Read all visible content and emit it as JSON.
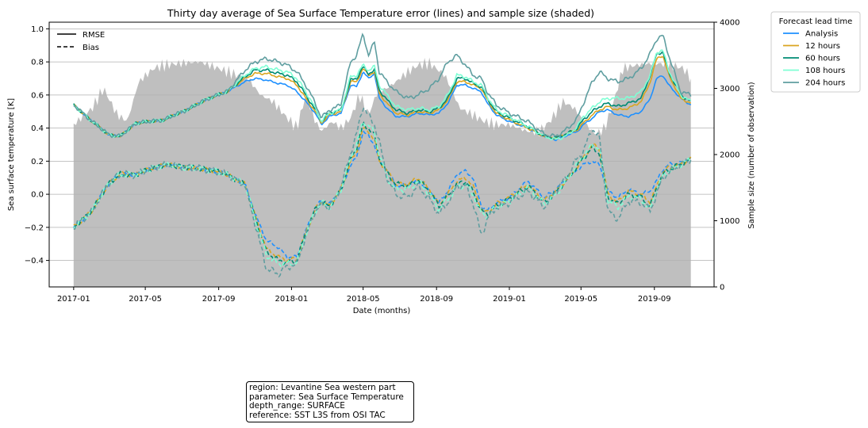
{
  "chart_data": {
    "type": "line",
    "title": "Thirty day average of Sea Surface Temperature error (lines) and sample size (shaded)",
    "xlabel": "Date (months)",
    "ylabel": "Sea surface temperature [K]",
    "y2label": "Sample size (number of observation)",
    "xlim": [
      "2016-11-21",
      "2019-12-10"
    ],
    "ylim": [
      -0.56,
      1.04
    ],
    "y2lim": [
      0,
      4000
    ],
    "x_ticks": [
      "2017-01",
      "2017-05",
      "2017-09",
      "2018-01",
      "2018-05",
      "2018-09",
      "2019-01",
      "2019-05",
      "2019-09"
    ],
    "y_ticks": [
      "−0.4",
      "−0.2",
      "0.0",
      "0.2",
      "0.4",
      "0.6",
      "0.8",
      "1.0"
    ],
    "y2_ticks": [
      "0",
      "1000",
      "2000",
      "3000",
      "4000"
    ],
    "grid": "y-major",
    "style_legend": {
      "placement": "top-left",
      "entries": [
        {
          "label": "RMSE",
          "style": "solid"
        },
        {
          "label": "Bias",
          "style": "dashed"
        }
      ]
    },
    "legend": {
      "title": "Forecast lead time",
      "placement": "outside-top-right",
      "entries": [
        "Analysis",
        "12 hours",
        "60 hours",
        "108 hours",
        "204 hours"
      ]
    },
    "colors": {
      "Analysis": "#1e90ff",
      "12 hours": "#daa520",
      "60 hours": "#008b74",
      "108 hours": "#7fffd4",
      "204 hours": "#5f9ea0",
      "sample_fill": "#bfbfbf"
    },
    "series_anchors": {
      "dates": [
        "2017-01-01",
        "2017-02-01",
        "2017-03-01",
        "2017-03-20",
        "2017-04-15",
        "2017-06-01",
        "2017-07-15",
        "2017-08-15",
        "2017-09-15",
        "2017-10-15",
        "2017-11-01",
        "2017-11-20",
        "2017-12-10",
        "2017-12-25",
        "2018-01-10",
        "2018-01-25",
        "2018-02-10",
        "2018-02-20",
        "2018-03-05",
        "2018-03-15",
        "2018-03-25",
        "2018-04-10",
        "2018-04-20",
        "2018-05-01",
        "2018-05-10",
        "2018-05-20",
        "2018-05-28",
        "2018-06-10",
        "2018-06-25",
        "2018-07-15",
        "2018-08-01",
        "2018-08-20",
        "2018-09-05",
        "2018-09-20",
        "2018-10-05",
        "2018-10-20",
        "2018-11-01",
        "2018-11-15",
        "2018-11-25",
        "2018-12-10",
        "2019-01-01",
        "2019-02-01",
        "2019-03-01",
        "2019-03-20",
        "2019-04-10",
        "2019-04-25",
        "2019-05-05",
        "2019-05-20",
        "2019-06-01",
        "2019-06-15",
        "2019-07-01",
        "2019-07-20",
        "2019-08-10",
        "2019-08-25",
        "2019-09-05",
        "2019-09-15",
        "2019-09-25",
        "2019-10-15",
        "2019-11-01"
      ],
      "rmse": {
        "Analysis": [
          0.54,
          0.44,
          0.36,
          0.35,
          0.43,
          0.45,
          0.52,
          0.58,
          0.62,
          0.68,
          0.7,
          0.69,
          0.67,
          0.66,
          0.62,
          0.56,
          0.49,
          0.42,
          0.47,
          0.48,
          0.49,
          0.66,
          0.65,
          0.74,
          0.7,
          0.73,
          0.58,
          0.52,
          0.47,
          0.47,
          0.49,
          0.48,
          0.49,
          0.55,
          0.66,
          0.66,
          0.64,
          0.62,
          0.55,
          0.48,
          0.44,
          0.4,
          0.35,
          0.33,
          0.36,
          0.38,
          0.42,
          0.46,
          0.5,
          0.51,
          0.48,
          0.47,
          0.5,
          0.58,
          0.7,
          0.72,
          0.66,
          0.58,
          0.54
        ],
        "12 hours": [
          0.54,
          0.44,
          0.36,
          0.35,
          0.43,
          0.45,
          0.52,
          0.58,
          0.62,
          0.7,
          0.73,
          0.73,
          0.71,
          0.7,
          0.66,
          0.58,
          0.5,
          0.43,
          0.48,
          0.49,
          0.5,
          0.68,
          0.68,
          0.76,
          0.72,
          0.74,
          0.61,
          0.55,
          0.49,
          0.48,
          0.5,
          0.49,
          0.51,
          0.57,
          0.68,
          0.68,
          0.66,
          0.64,
          0.57,
          0.49,
          0.45,
          0.4,
          0.35,
          0.34,
          0.37,
          0.39,
          0.43,
          0.48,
          0.51,
          0.53,
          0.51,
          0.52,
          0.56,
          0.68,
          0.82,
          0.84,
          0.72,
          0.58,
          0.55
        ],
        "60 hours": [
          0.54,
          0.44,
          0.36,
          0.35,
          0.43,
          0.45,
          0.52,
          0.58,
          0.62,
          0.71,
          0.75,
          0.75,
          0.73,
          0.72,
          0.68,
          0.6,
          0.51,
          0.44,
          0.49,
          0.5,
          0.51,
          0.69,
          0.7,
          0.77,
          0.73,
          0.75,
          0.63,
          0.57,
          0.51,
          0.49,
          0.51,
          0.5,
          0.52,
          0.58,
          0.7,
          0.7,
          0.67,
          0.65,
          0.58,
          0.5,
          0.46,
          0.41,
          0.35,
          0.34,
          0.37,
          0.4,
          0.45,
          0.5,
          0.53,
          0.55,
          0.53,
          0.55,
          0.58,
          0.72,
          0.85,
          0.86,
          0.74,
          0.6,
          0.56
        ],
        "108 hours": [
          0.54,
          0.44,
          0.36,
          0.35,
          0.43,
          0.45,
          0.52,
          0.58,
          0.62,
          0.72,
          0.76,
          0.77,
          0.75,
          0.74,
          0.7,
          0.62,
          0.52,
          0.44,
          0.49,
          0.5,
          0.51,
          0.71,
          0.72,
          0.78,
          0.75,
          0.77,
          0.66,
          0.6,
          0.53,
          0.51,
          0.52,
          0.51,
          0.53,
          0.6,
          0.72,
          0.71,
          0.68,
          0.66,
          0.59,
          0.51,
          0.47,
          0.41,
          0.35,
          0.33,
          0.36,
          0.41,
          0.47,
          0.52,
          0.56,
          0.58,
          0.58,
          0.58,
          0.62,
          0.72,
          0.86,
          0.87,
          0.75,
          0.6,
          0.56
        ],
        "204 hours": [
          0.54,
          0.44,
          0.36,
          0.35,
          0.43,
          0.45,
          0.52,
          0.58,
          0.62,
          0.75,
          0.8,
          0.82,
          0.8,
          0.78,
          0.74,
          0.66,
          0.55,
          0.46,
          0.51,
          0.52,
          0.55,
          0.8,
          0.84,
          0.97,
          0.84,
          0.92,
          0.74,
          0.68,
          0.62,
          0.58,
          0.6,
          0.64,
          0.7,
          0.8,
          0.84,
          0.78,
          0.72,
          0.7,
          0.62,
          0.54,
          0.49,
          0.44,
          0.36,
          0.35,
          0.4,
          0.46,
          0.55,
          0.68,
          0.74,
          0.7,
          0.68,
          0.7,
          0.76,
          0.85,
          0.94,
          0.96,
          0.84,
          0.62,
          0.6
        ]
      },
      "bias": {
        "Analysis": [
          -0.2,
          -0.1,
          0.07,
          0.12,
          0.12,
          0.18,
          0.16,
          0.15,
          0.12,
          0.06,
          -0.12,
          -0.28,
          -0.32,
          -0.38,
          -0.38,
          -0.22,
          -0.08,
          -0.04,
          -0.06,
          -0.02,
          0.02,
          0.18,
          0.22,
          0.38,
          0.35,
          0.3,
          0.2,
          0.15,
          0.05,
          0.06,
          0.08,
          0.02,
          -0.05,
          0.02,
          0.12,
          0.14,
          0.1,
          -0.07,
          -0.1,
          -0.05,
          -0.02,
          0.08,
          -0.02,
          0.03,
          0.1,
          0.15,
          0.18,
          0.2,
          0.18,
          0.02,
          -0.02,
          0.03,
          0.0,
          0.02,
          0.08,
          0.15,
          0.18,
          0.19,
          0.22
        ],
        "12 hours": [
          -0.2,
          -0.1,
          0.07,
          0.12,
          0.12,
          0.18,
          0.16,
          0.15,
          0.12,
          0.06,
          -0.13,
          -0.33,
          -0.38,
          -0.4,
          -0.39,
          -0.23,
          -0.09,
          -0.04,
          -0.07,
          -0.02,
          0.03,
          0.2,
          0.25,
          0.4,
          0.38,
          0.33,
          0.2,
          0.14,
          0.06,
          0.06,
          0.1,
          0.03,
          -0.06,
          0.0,
          0.08,
          0.1,
          0.05,
          -0.09,
          -0.11,
          -0.06,
          -0.02,
          0.06,
          -0.04,
          0.02,
          0.1,
          0.17,
          0.22,
          0.3,
          0.27,
          0.0,
          -0.05,
          0.02,
          0.0,
          -0.05,
          0.05,
          0.13,
          0.16,
          0.18,
          0.22
        ],
        "60 hours": [
          -0.2,
          -0.1,
          0.07,
          0.12,
          0.12,
          0.18,
          0.16,
          0.15,
          0.12,
          0.06,
          -0.14,
          -0.35,
          -0.4,
          -0.41,
          -0.4,
          -0.23,
          -0.09,
          -0.05,
          -0.07,
          -0.03,
          0.03,
          0.21,
          0.28,
          0.42,
          0.4,
          0.35,
          0.22,
          0.13,
          0.06,
          0.05,
          0.09,
          0.02,
          -0.07,
          -0.01,
          0.06,
          0.08,
          0.02,
          -0.1,
          -0.12,
          -0.07,
          -0.03,
          0.05,
          -0.05,
          0.01,
          0.1,
          0.17,
          0.22,
          0.28,
          0.25,
          -0.02,
          -0.06,
          0.0,
          -0.02,
          -0.07,
          0.04,
          0.12,
          0.15,
          0.18,
          0.21
        ],
        "108 hours": [
          -0.2,
          -0.1,
          0.07,
          0.12,
          0.12,
          0.18,
          0.16,
          0.15,
          0.12,
          0.06,
          -0.15,
          -0.37,
          -0.42,
          -0.42,
          -0.41,
          -0.24,
          -0.1,
          -0.05,
          -0.08,
          -0.03,
          0.03,
          0.22,
          0.3,
          0.44,
          0.42,
          0.37,
          0.24,
          0.1,
          0.03,
          0.03,
          0.08,
          0.0,
          -0.09,
          -0.03,
          0.04,
          0.06,
          0.0,
          -0.12,
          -0.13,
          -0.08,
          -0.04,
          0.04,
          -0.06,
          0.0,
          0.1,
          0.18,
          0.23,
          0.3,
          0.28,
          -0.04,
          -0.08,
          -0.01,
          -0.03,
          -0.09,
          0.03,
          0.11,
          0.14,
          0.18,
          0.21
        ],
        "204 hours": [
          -0.2,
          -0.1,
          0.07,
          0.12,
          0.12,
          0.18,
          0.16,
          0.15,
          0.12,
          0.06,
          -0.18,
          -0.45,
          -0.48,
          -0.44,
          -0.42,
          -0.25,
          -0.1,
          -0.06,
          -0.08,
          -0.03,
          0.05,
          0.25,
          0.36,
          0.54,
          0.47,
          0.42,
          0.32,
          0.1,
          0.0,
          -0.02,
          0.05,
          -0.03,
          -0.12,
          -0.05,
          0.05,
          0.05,
          -0.05,
          -0.25,
          -0.15,
          -0.08,
          -0.05,
          0.02,
          -0.08,
          0.02,
          0.12,
          0.22,
          0.26,
          0.4,
          0.34,
          -0.1,
          -0.15,
          -0.04,
          -0.05,
          -0.1,
          0.0,
          0.1,
          0.13,
          0.18,
          0.21
        ]
      }
    },
    "sample_size": {
      "dates": [
        "2017-01-01",
        "2017-02-01",
        "2017-02-20",
        "2017-03-15",
        "2017-04-01",
        "2017-04-20",
        "2017-05-15",
        "2017-06-01",
        "2017-07-01",
        "2017-08-01",
        "2017-09-01",
        "2017-10-01",
        "2017-10-20",
        "2017-11-10",
        "2017-12-01",
        "2017-12-20",
        "2018-01-10",
        "2018-01-25",
        "2018-02-10",
        "2018-02-20",
        "2018-03-10",
        "2018-03-25",
        "2018-04-10",
        "2018-04-25",
        "2018-05-10",
        "2018-05-25",
        "2018-06-10",
        "2018-06-25",
        "2018-07-15",
        "2018-08-01",
        "2018-08-20",
        "2018-09-15",
        "2018-10-10",
        "2018-11-01",
        "2018-11-20",
        "2018-12-10",
        "2019-01-01",
        "2019-02-01",
        "2019-02-20",
        "2019-03-10",
        "2019-04-01",
        "2019-04-20",
        "2019-05-10",
        "2019-05-25",
        "2019-06-10",
        "2019-06-25",
        "2019-07-10",
        "2019-08-01",
        "2019-09-01",
        "2019-10-01",
        "2019-10-20",
        "2019-11-01"
      ],
      "values": [
        2450,
        2700,
        3000,
        2600,
        2500,
        3100,
        3300,
        3350,
        3380,
        3400,
        3300,
        3200,
        3150,
        2900,
        2800,
        2600,
        2400,
        2900,
        2500,
        2350,
        2500,
        2400,
        2550,
        2900,
        2600,
        2950,
        3000,
        3100,
        3250,
        3350,
        3380,
        3200,
        2700,
        2600,
        2500,
        2450,
        2450,
        2350,
        2350,
        2500,
        2800,
        2700,
        2450,
        2300,
        2400,
        2800,
        3300,
        3350,
        3380,
        3350,
        3300,
        3150
      ]
    },
    "info_box": [
      "region: Levantine Sea western part",
      "parameter: Sea Surface Temperature",
      "depth_range: SURFACE",
      "reference: SST L3S from OSI TAC"
    ]
  }
}
